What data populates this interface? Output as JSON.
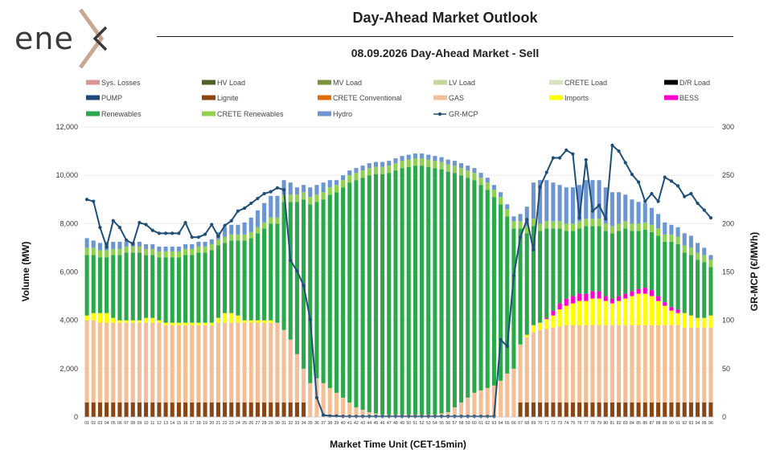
{
  "brand": {
    "logo_text": "ene",
    "accent": "#c9a892"
  },
  "header": {
    "title": "Day-Ahead Market Outlook",
    "subtitle": "08.09.2026  Day-Ahead Market - Sell"
  },
  "chart_data": {
    "type": "bar",
    "xlabel": "Market Time Unit (CET-15min)",
    "ylabel": "Volume (MW)",
    "y2label": "GR-MCP (€/MWh)",
    "ylim": [
      0,
      12000
    ],
    "y2lim": [
      0,
      300
    ],
    "yticks": [
      "0",
      "2,000",
      "4,000",
      "6,000",
      "8,000",
      "10,000",
      "12,000"
    ],
    "y2ticks": [
      "0",
      "50",
      "100",
      "150",
      "200",
      "250",
      "300"
    ],
    "categories": [
      "01",
      "02",
      "03",
      "04",
      "05",
      "06",
      "07",
      "08",
      "09",
      "10",
      "11",
      "12",
      "13",
      "14",
      "15",
      "16",
      "17",
      "18",
      "19",
      "20",
      "21",
      "22",
      "23",
      "24",
      "25",
      "26",
      "27",
      "28",
      "29",
      "30",
      "31",
      "32",
      "33",
      "34",
      "35",
      "36",
      "37",
      "38",
      "39",
      "40",
      "41",
      "42",
      "43",
      "44",
      "45",
      "46",
      "47",
      "48",
      "49",
      "50",
      "51",
      "52",
      "53",
      "54",
      "55",
      "56",
      "57",
      "58",
      "59",
      "60",
      "61",
      "62",
      "63",
      "64",
      "65",
      "66",
      "67",
      "68",
      "69",
      "70",
      "71",
      "72",
      "73",
      "74",
      "75",
      "76",
      "77",
      "78",
      "79",
      "80",
      "81",
      "82",
      "83",
      "84",
      "85",
      "86",
      "87",
      "88",
      "89",
      "90",
      "91",
      "92",
      "93",
      "94",
      "95",
      "96"
    ],
    "legend": [
      {
        "name": "Sys. Losses",
        "color": "#d99694"
      },
      {
        "name": "HV Load",
        "color": "#4f6228"
      },
      {
        "name": "MV Load",
        "color": "#77933c"
      },
      {
        "name": "LV Load",
        "color": "#c3d69b"
      },
      {
        "name": "CRETE Load",
        "color": "#d7e4bd"
      },
      {
        "name": "D/R Load",
        "color": "#000000"
      },
      {
        "name": "PUMP",
        "color": "#1f497d"
      },
      {
        "name": "Lignite",
        "color": "#8b4513"
      },
      {
        "name": "CRETE Conventional",
        "color": "#e26b0a"
      },
      {
        "name": "GAS",
        "color": "#f4bf96"
      },
      {
        "name": "Imports",
        "color": "#ffff00"
      },
      {
        "name": "BESS",
        "color": "#ff00cc"
      },
      {
        "name": "Renewables",
        "color": "#2aa84a"
      },
      {
        "name": "CRETE Renewables",
        "color": "#92d050"
      },
      {
        "name": "Hydro",
        "color": "#6b96d2"
      },
      {
        "name": "GR-MCP",
        "color": "#1f4e79"
      }
    ],
    "series": [
      {
        "name": "Lignite",
        "color": "#8b4513",
        "values": [
          600,
          600,
          600,
          600,
          600,
          600,
          600,
          600,
          600,
          600,
          600,
          600,
          600,
          600,
          600,
          600,
          600,
          600,
          600,
          600,
          600,
          600,
          600,
          600,
          600,
          600,
          600,
          600,
          600,
          600,
          600,
          600,
          600,
          600,
          0,
          0,
          0,
          0,
          0,
          0,
          0,
          0,
          0,
          0,
          0,
          0,
          0,
          0,
          0,
          0,
          0,
          0,
          0,
          0,
          0,
          0,
          0,
          0,
          0,
          0,
          0,
          0,
          0,
          0,
          0,
          0,
          600,
          600,
          600,
          600,
          600,
          600,
          600,
          600,
          600,
          600,
          600,
          600,
          600,
          600,
          600,
          600,
          600,
          600,
          600,
          600,
          600,
          600,
          600,
          600,
          600,
          600,
          600,
          600,
          600,
          600
        ]
      },
      {
        "name": "GAS",
        "color": "#f4bf96",
        "values": [
          3400,
          3400,
          3300,
          3300,
          3300,
          3300,
          3300,
          3300,
          3300,
          3300,
          3300,
          3300,
          3200,
          3200,
          3200,
          3200,
          3200,
          3200,
          3200,
          3200,
          3300,
          3300,
          3300,
          3300,
          3300,
          3300,
          3300,
          3300,
          3300,
          3300,
          3000,
          2600,
          2000,
          1400,
          1400,
          1600,
          1400,
          1200,
          1000,
          800,
          600,
          400,
          300,
          200,
          150,
          100,
          100,
          100,
          100,
          100,
          100,
          100,
          100,
          100,
          150,
          200,
          400,
          600,
          800,
          1000,
          1100,
          1200,
          1300,
          1500,
          1800,
          2000,
          2400,
          2700,
          2900,
          3000,
          3050,
          3100,
          3150,
          3200,
          3200,
          3200,
          3200,
          3200,
          3200,
          3200,
          3200,
          3200,
          3200,
          3200,
          3200,
          3200,
          3200,
          3200,
          3200,
          3200,
          3200,
          3100,
          3100,
          3100,
          3100,
          3100
        ]
      },
      {
        "name": "Imports",
        "color": "#ffff00",
        "values": [
          200,
          300,
          400,
          400,
          200,
          100,
          100,
          100,
          100,
          200,
          200,
          100,
          100,
          100,
          100,
          100,
          100,
          100,
          100,
          100,
          200,
          400,
          400,
          300,
          100,
          100,
          100,
          100,
          100,
          0,
          0,
          0,
          0,
          0,
          0,
          0,
          0,
          0,
          0,
          0,
          0,
          0,
          0,
          0,
          0,
          0,
          0,
          0,
          0,
          0,
          0,
          0,
          0,
          0,
          0,
          0,
          0,
          0,
          0,
          0,
          0,
          0,
          0,
          0,
          0,
          0,
          0,
          100,
          300,
          300,
          400,
          500,
          700,
          800,
          900,
          1000,
          1000,
          1100,
          1100,
          1000,
          900,
          1000,
          1100,
          1200,
          1300,
          1300,
          1200,
          1000,
          800,
          600,
          500,
          600,
          500,
          400,
          400,
          500
        ]
      },
      {
        "name": "BESS",
        "color": "#ff00cc",
        "values": [
          0,
          0,
          0,
          0,
          0,
          0,
          0,
          0,
          0,
          0,
          0,
          0,
          0,
          0,
          0,
          0,
          0,
          0,
          0,
          0,
          0,
          0,
          0,
          0,
          0,
          0,
          0,
          0,
          0,
          0,
          0,
          0,
          0,
          0,
          0,
          0,
          0,
          0,
          0,
          0,
          0,
          0,
          0,
          0,
          0,
          0,
          0,
          0,
          0,
          0,
          0,
          0,
          0,
          0,
          0,
          0,
          0,
          0,
          0,
          0,
          0,
          0,
          0,
          0,
          0,
          0,
          0,
          0,
          0,
          0,
          50,
          200,
          250,
          300,
          300,
          300,
          300,
          300,
          300,
          200,
          200,
          200,
          200,
          200,
          200,
          250,
          250,
          200,
          150,
          150,
          150,
          0,
          0,
          0,
          0,
          0
        ]
      },
      {
        "name": "Renewables",
        "color": "#2aa84a",
        "values": [
          2500,
          2400,
          2300,
          2300,
          2600,
          2700,
          2800,
          2800,
          2800,
          2600,
          2600,
          2600,
          2700,
          2700,
          2700,
          2800,
          2800,
          2900,
          2900,
          3000,
          3000,
          2900,
          3000,
          3100,
          3300,
          3400,
          3600,
          3800,
          4000,
          4100,
          5300,
          5700,
          6300,
          7000,
          7400,
          7300,
          7600,
          8000,
          8300,
          8700,
          9100,
          9400,
          9600,
          9800,
          9900,
          9950,
          10000,
          10100,
          10200,
          10250,
          10300,
          10300,
          10250,
          10200,
          10100,
          9950,
          9700,
          9400,
          9100,
          8800,
          8500,
          8200,
          7800,
          7300,
          6500,
          5800,
          4800,
          4200,
          4100,
          3800,
          3700,
          3400,
          3100,
          2800,
          2700,
          2700,
          2800,
          2700,
          2700,
          2700,
          2700,
          2700,
          2700,
          2500,
          2400,
          2400,
          2400,
          2500,
          2500,
          2700,
          2700,
          2500,
          2500,
          2400,
          2300,
          2000
        ]
      },
      {
        "name": "CRETE Renewables",
        "color": "#92d050",
        "values": [
          300,
          300,
          300,
          300,
          250,
          250,
          250,
          250,
          250,
          250,
          250,
          250,
          250,
          250,
          250,
          250,
          250,
          250,
          250,
          250,
          250,
          250,
          250,
          250,
          250,
          250,
          250,
          250,
          250,
          250,
          300,
          300,
          300,
          300,
          300,
          300,
          300,
          300,
          300,
          300,
          300,
          300,
          300,
          300,
          300,
          300,
          300,
          300,
          300,
          300,
          300,
          300,
          300,
          300,
          300,
          300,
          300,
          300,
          300,
          300,
          300,
          300,
          300,
          300,
          300,
          300,
          300,
          300,
          300,
          300,
          300,
          300,
          300,
          300,
          300,
          300,
          300,
          300,
          300,
          300,
          300,
          300,
          300,
          300,
          300,
          300,
          300,
          300,
          300,
          300,
          300,
          300,
          300,
          300,
          300,
          300
        ]
      },
      {
        "name": "Hydro",
        "color": "#6b96d2",
        "values": [
          400,
          300,
          300,
          350,
          300,
          300,
          200,
          200,
          200,
          200,
          200,
          200,
          200,
          200,
          200,
          200,
          200,
          200,
          200,
          200,
          300,
          400,
          400,
          400,
          500,
          600,
          700,
          800,
          900,
          900,
          600,
          500,
          300,
          300,
          400,
          400,
          400,
          300,
          200,
          200,
          200,
          200,
          200,
          200,
          200,
          200,
          200,
          200,
          200,
          200,
          200,
          200,
          200,
          200,
          200,
          200,
          200,
          200,
          200,
          200,
          200,
          200,
          200,
          200,
          200,
          200,
          300,
          800,
          1500,
          1800,
          1700,
          1600,
          1500,
          1500,
          1500,
          1500,
          1600,
          1600,
          1600,
          1500,
          1400,
          1300,
          1100,
          1000,
          900,
          800,
          700,
          600,
          500,
          400,
          400,
          500,
          500,
          400,
          300,
          200
        ]
      }
    ],
    "line": {
      "name": "GR-MCP",
      "color": "#1f4e79",
      "values": [
        225,
        223,
        196,
        176,
        203,
        196,
        183,
        179,
        201,
        199,
        193,
        190,
        190,
        190,
        190,
        201,
        186,
        186,
        189,
        199,
        187,
        198,
        203,
        213,
        216,
        221,
        226,
        231,
        233,
        237,
        235,
        162,
        151,
        136,
        101,
        20,
        2,
        1,
        1,
        0.5,
        0.5,
        0.5,
        0.5,
        0.5,
        0.5,
        0.5,
        0.5,
        0.5,
        0.5,
        0.5,
        0.5,
        0.5,
        0.5,
        0.5,
        0.5,
        0.5,
        0.5,
        0.5,
        0.5,
        0.5,
        0.5,
        0.5,
        0.5,
        80,
        73,
        146,
        186,
        204,
        173,
        238,
        253,
        268,
        268,
        276,
        272,
        206,
        266,
        213,
        219,
        205,
        281,
        275,
        263,
        251,
        243,
        223,
        231,
        223,
        248,
        244,
        239,
        228,
        231,
        221,
        214,
        206
      ]
    }
  }
}
